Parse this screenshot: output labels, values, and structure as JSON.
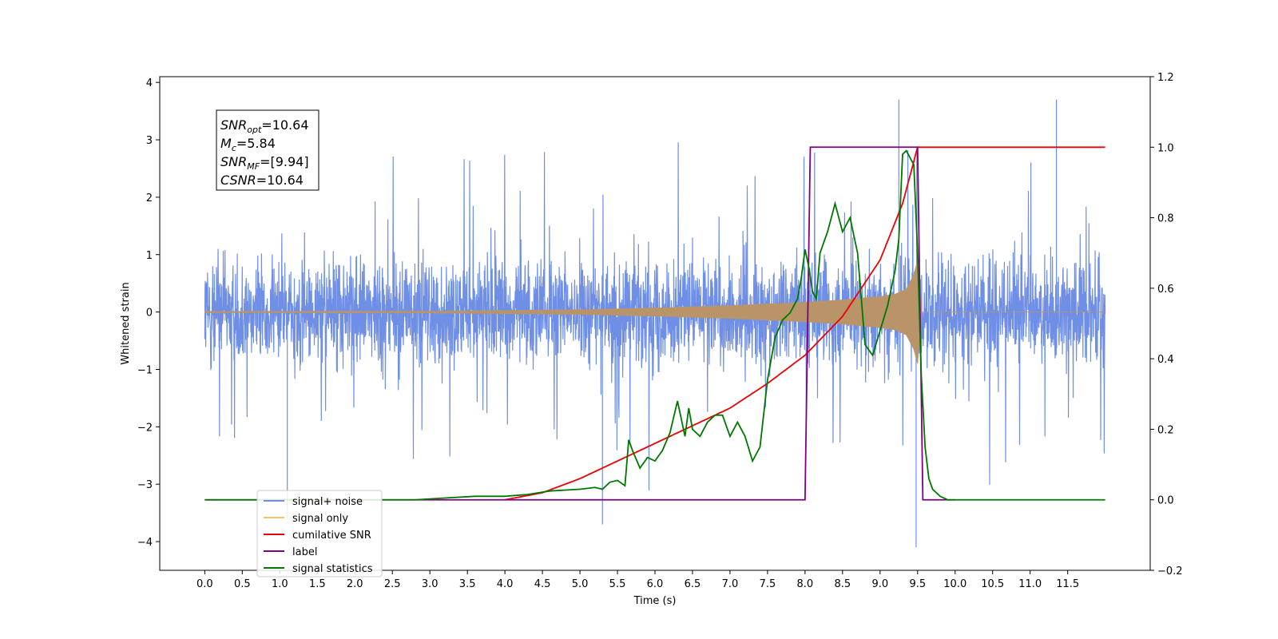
{
  "chart_data": {
    "type": "line",
    "title": "",
    "xlabel": "Time (s)",
    "ylabel": "Whitened strain",
    "xlim": [
      -0.6,
      12.6
    ],
    "ylim": [
      -4.5,
      4.1
    ],
    "y2lim": [
      -0.2,
      1.2
    ],
    "grid": false,
    "legend_placement": "lower-left",
    "x_ticks": [
      "0.0",
      "0.5",
      "1.0",
      "1.5",
      "2.0",
      "2.5",
      "3.0",
      "3.5",
      "4.0",
      "4.5",
      "5.0",
      "5.5",
      "6.0",
      "6.5",
      "7.0",
      "7.5",
      "8.0",
      "8.5",
      "9.0",
      "9.5",
      "10.0",
      "10.5",
      "11.0",
      "11.5"
    ],
    "y_ticks": [
      "−4",
      "−3",
      "−2",
      "−1",
      "0",
      "1",
      "2",
      "3",
      "4"
    ],
    "y2_ticks": [
      "−0.2",
      "0.0",
      "0.2",
      "0.4",
      "0.6",
      "0.8",
      "1.0",
      "1.2"
    ],
    "annotation": {
      "lines": [
        {
          "sym": "SNR",
          "sub": "opt",
          "value": "=10.64"
        },
        {
          "sym": "M",
          "sub": "c",
          "value": "=5.84"
        },
        {
          "sym": "SNR",
          "sub": "MF",
          "value": "=[9.94]"
        },
        {
          "sym": "CSNR",
          "sub": "",
          "value": "=10.64"
        }
      ]
    },
    "legend": [
      {
        "label": "signal+ noise",
        "color": "#6f8fe6"
      },
      {
        "label": "signal only",
        "color": "#f5c26b"
      },
      {
        "label": "cumilative SNR",
        "color": "#ee0000"
      },
      {
        "label": "label",
        "color": "#800080"
      },
      {
        "label": "signal statistics",
        "color": "#007700"
      }
    ],
    "colors": {
      "noise": "#6f8fe6",
      "signal": "#b89468",
      "cumulative": "#ee0000",
      "label": "#800080",
      "stats": "#007700"
    },
    "series": [
      {
        "name": "signal+ noise",
        "axis": "left",
        "x_range": [
          0.0,
          12.0
        ],
        "amplitude_envelope": 1.6,
        "peak_values": [
          3.7,
          -4.1
        ]
      },
      {
        "name": "signal only",
        "axis": "left",
        "x": [
          0.0,
          3.0,
          5.0,
          6.0,
          7.0,
          7.5,
          8.0,
          8.5,
          9.0,
          9.2,
          9.35,
          9.45,
          9.5,
          9.55,
          12.0
        ],
        "envelope": [
          0.01,
          0.015,
          0.04,
          0.07,
          0.11,
          0.14,
          0.17,
          0.21,
          0.27,
          0.31,
          0.4,
          0.65,
          0.9,
          0.0,
          0.0
        ]
      },
      {
        "name": "cumilative SNR",
        "axis": "right",
        "x": [
          4.0,
          4.5,
          5.0,
          5.5,
          6.0,
          6.5,
          7.0,
          7.5,
          8.0,
          8.5,
          9.0,
          9.3,
          9.5,
          12.0
        ],
        "y": [
          0.0,
          0.02,
          0.06,
          0.11,
          0.16,
          0.21,
          0.26,
          0.33,
          0.41,
          0.52,
          0.68,
          0.84,
          1.0,
          1.0
        ]
      },
      {
        "name": "label",
        "axis": "right",
        "x": [
          0.0,
          8.0,
          8.07,
          9.5,
          9.57,
          10.0
        ],
        "y": [
          0.0,
          0.0,
          1.0,
          1.0,
          0.0,
          0.0
        ]
      },
      {
        "name": "signal statistics",
        "axis": "right",
        "x": [
          0.0,
          2.8,
          3.2,
          3.6,
          4.0,
          4.3,
          4.6,
          5.0,
          5.2,
          5.3,
          5.4,
          5.5,
          5.6,
          5.65,
          5.7,
          5.8,
          5.9,
          6.0,
          6.1,
          6.2,
          6.3,
          6.4,
          6.45,
          6.5,
          6.6,
          6.7,
          6.8,
          6.9,
          7.0,
          7.1,
          7.2,
          7.3,
          7.4,
          7.5,
          7.6,
          7.7,
          7.8,
          7.9,
          7.95,
          8.0,
          8.05,
          8.1,
          8.15,
          8.2,
          8.3,
          8.4,
          8.5,
          8.6,
          8.7,
          8.8,
          8.9,
          9.0,
          9.1,
          9.2,
          9.25,
          9.3,
          9.35,
          9.4,
          9.45,
          9.5,
          9.55,
          9.6,
          9.65,
          9.7,
          9.8,
          9.9,
          12.0
        ],
        "y": [
          0.0,
          0.0,
          0.005,
          0.01,
          0.01,
          0.015,
          0.025,
          0.03,
          0.035,
          0.03,
          0.05,
          0.055,
          0.04,
          0.17,
          0.14,
          0.09,
          0.12,
          0.11,
          0.14,
          0.19,
          0.28,
          0.18,
          0.26,
          0.2,
          0.18,
          0.22,
          0.24,
          0.24,
          0.18,
          0.22,
          0.18,
          0.11,
          0.15,
          0.34,
          0.46,
          0.51,
          0.53,
          0.57,
          0.63,
          0.71,
          0.66,
          0.59,
          0.57,
          0.7,
          0.76,
          0.84,
          0.76,
          0.8,
          0.7,
          0.44,
          0.41,
          0.48,
          0.55,
          0.65,
          0.74,
          0.98,
          0.99,
          0.97,
          0.95,
          0.7,
          0.35,
          0.15,
          0.06,
          0.03,
          0.01,
          0.0,
          0.0
        ]
      }
    ]
  }
}
